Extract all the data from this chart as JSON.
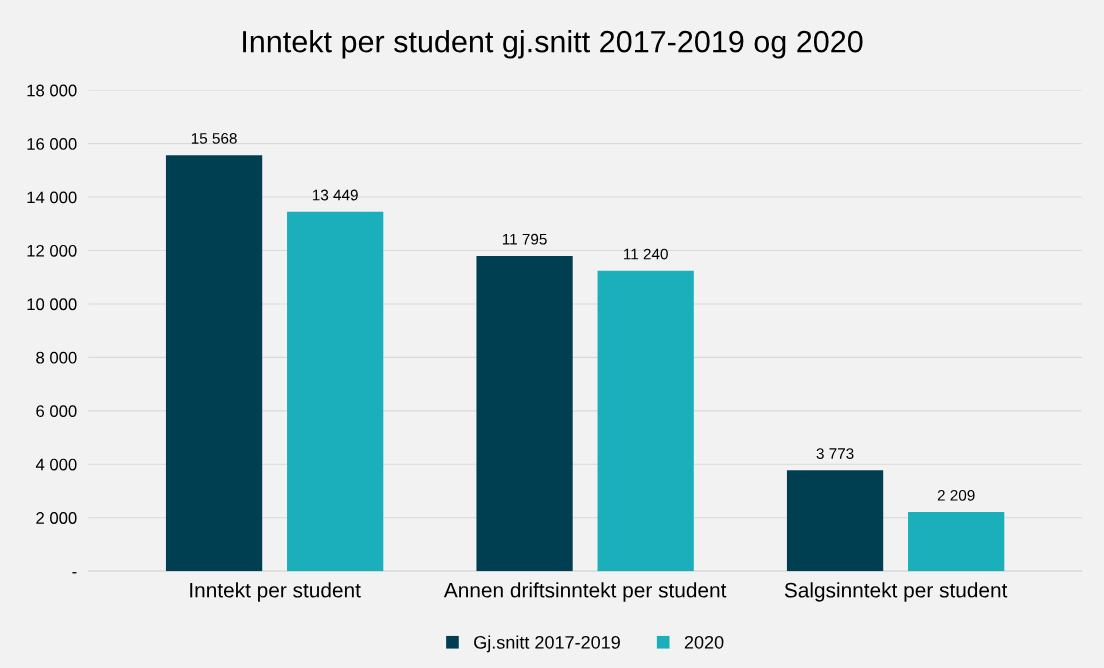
{
  "chart_data": {
    "type": "bar",
    "title": "Inntekt per student gj.snitt 2017-2019 og 2020",
    "categories": [
      "Inntekt per student",
      "Annen driftsinntekt per student",
      "Salgsinntekt per student"
    ],
    "series": [
      {
        "name": "Gj.snitt 2017-2019",
        "color": "#003f52",
        "values": [
          15568,
          11795,
          3773
        ],
        "value_labels": [
          "15 568",
          "11 795",
          "3 773"
        ]
      },
      {
        "name": "2020",
        "color": "#1aafbb",
        "values": [
          13449,
          11240,
          2209
        ],
        "value_labels": [
          "13 449",
          "11 240",
          "2 209"
        ]
      }
    ],
    "ylim": [
      0,
      18000
    ],
    "yticks": [
      {
        "value": 0,
        "label": "-"
      },
      {
        "value": 2000,
        "label": "2 000"
      },
      {
        "value": 4000,
        "label": "4 000"
      },
      {
        "value": 6000,
        "label": "6 000"
      },
      {
        "value": 8000,
        "label": "8 000"
      },
      {
        "value": 10000,
        "label": "10 000"
      },
      {
        "value": 12000,
        "label": "12 000"
      },
      {
        "value": 14000,
        "label": "14 000"
      },
      {
        "value": 16000,
        "label": "16 000"
      },
      {
        "value": 18000,
        "label": "18 000"
      }
    ],
    "grid": "y",
    "legend": "bottom"
  }
}
